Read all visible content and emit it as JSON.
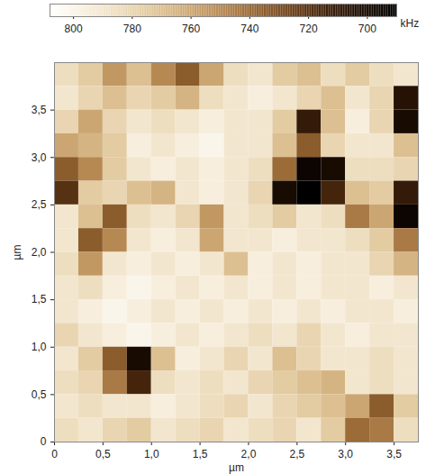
{
  "chart_data": {
    "type": "heatmap",
    "x_label": "µm",
    "y_label": "µm",
    "xlim": [
      0,
      3.75
    ],
    "ylim": [
      0,
      4.0
    ],
    "xticks": [
      0,
      {
        "value": 0.5,
        "label": "0,5"
      },
      {
        "value": 1.0,
        "label": "1,0"
      },
      {
        "value": 1.5,
        "label": "1,5"
      },
      {
        "value": 2.0,
        "label": "2,0"
      },
      {
        "value": 2.5,
        "label": "2,5"
      },
      {
        "value": 3.0,
        "label": "3,0"
      },
      {
        "value": 3.5,
        "label": "3,5"
      }
    ],
    "yticks": [
      0,
      {
        "value": 0.5,
        "label": "0,5"
      },
      {
        "value": 1.0,
        "label": "1,0"
      },
      {
        "value": 1.5,
        "label": "1,5"
      },
      {
        "value": 2.0,
        "label": "2,0"
      },
      {
        "value": 2.5,
        "label": "2,5"
      },
      {
        "value": 3.0,
        "label": "3,0"
      },
      {
        "value": 3.5,
        "label": "3,5"
      }
    ],
    "x": [
      0.125,
      0.375,
      0.625,
      0.875,
      1.125,
      1.375,
      1.625,
      1.875,
      2.125,
      2.375,
      2.625,
      2.875,
      3.125,
      3.375,
      3.625
    ],
    "y": [
      3.875,
      3.625,
      3.375,
      3.125,
      2.875,
      2.625,
      2.375,
      2.125,
      1.875,
      1.625,
      1.375,
      1.125,
      0.875,
      0.625,
      0.375,
      0.125
    ],
    "z": [
      [
        785,
        775,
        755,
        770,
        750,
        735,
        760,
        785,
        790,
        775,
        770,
        785,
        775,
        785,
        790
      ],
      [
        790,
        780,
        770,
        780,
        775,
        765,
        785,
        790,
        795,
        790,
        780,
        770,
        790,
        780,
        705
      ],
      [
        780,
        760,
        780,
        790,
        785,
        790,
        795,
        790,
        790,
        775,
        710,
        770,
        795,
        780,
        700
      ],
      [
        760,
        765,
        775,
        795,
        790,
        795,
        800,
        790,
        790,
        770,
        735,
        780,
        790,
        790,
        770
      ],
      [
        735,
        750,
        775,
        790,
        795,
        790,
        795,
        790,
        785,
        740,
        695,
        700,
        785,
        785,
        780
      ],
      [
        720,
        775,
        780,
        770,
        765,
        790,
        795,
        790,
        780,
        700,
        690,
        715,
        770,
        775,
        710
      ],
      [
        790,
        770,
        735,
        785,
        790,
        780,
        755,
        790,
        785,
        775,
        790,
        785,
        745,
        760,
        695
      ],
      [
        790,
        735,
        750,
        790,
        795,
        790,
        760,
        790,
        790,
        795,
        790,
        790,
        785,
        775,
        745
      ],
      [
        785,
        755,
        790,
        795,
        790,
        795,
        790,
        770,
        795,
        790,
        795,
        790,
        790,
        780,
        765
      ],
      [
        790,
        785,
        795,
        800,
        795,
        790,
        795,
        790,
        795,
        790,
        795,
        790,
        790,
        795,
        790
      ],
      [
        790,
        795,
        800,
        795,
        790,
        795,
        790,
        795,
        790,
        795,
        790,
        795,
        790,
        790,
        795
      ],
      [
        780,
        790,
        795,
        800,
        795,
        790,
        795,
        790,
        785,
        790,
        780,
        790,
        795,
        790,
        790
      ],
      [
        790,
        775,
        735,
        700,
        770,
        795,
        790,
        780,
        790,
        770,
        780,
        790,
        790,
        785,
        790
      ],
      [
        785,
        780,
        745,
        715,
        785,
        790,
        785,
        790,
        780,
        775,
        770,
        765,
        790,
        785,
        790
      ],
      [
        790,
        785,
        790,
        790,
        795,
        790,
        785,
        780,
        790,
        780,
        775,
        770,
        760,
        735,
        775
      ],
      [
        785,
        790,
        780,
        775,
        790,
        785,
        780,
        790,
        785,
        780,
        790,
        775,
        740,
        745,
        785
      ]
    ],
    "colorbar": {
      "range": [
        808,
        690
      ],
      "ticks": [
        800,
        780,
        760,
        740,
        720,
        700
      ],
      "label": "kHz"
    }
  }
}
